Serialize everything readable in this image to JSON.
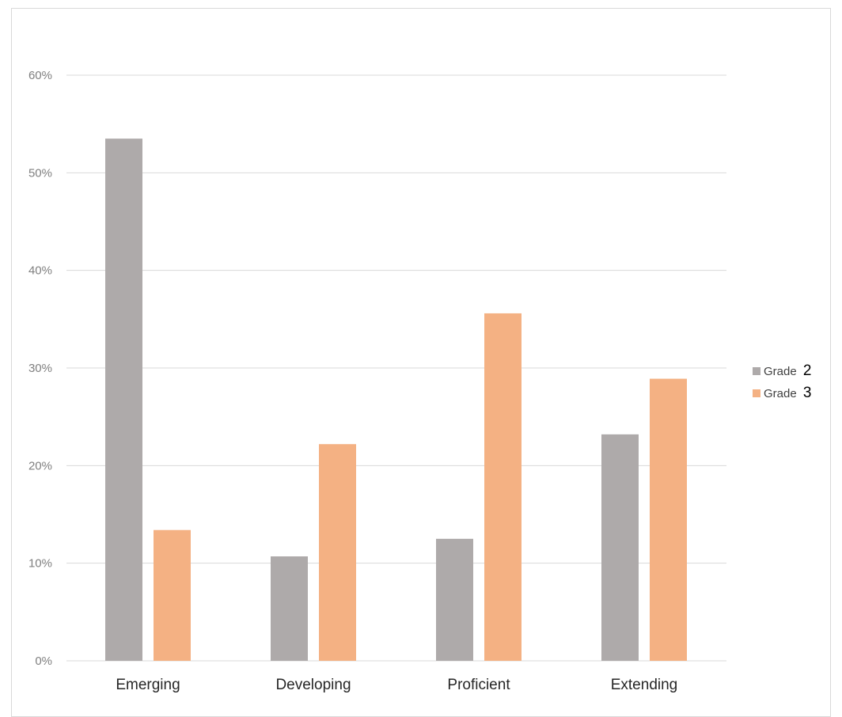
{
  "chart_data": {
    "type": "bar",
    "categories": [
      "Emerging",
      "Developing",
      "Proficient",
      "Extending"
    ],
    "series": [
      {
        "name": "Grade 2",
        "legend_word": "Grade",
        "legend_number": "2",
        "color": "#aeaaaa",
        "values": [
          53.5,
          10.7,
          12.5,
          23.2
        ]
      },
      {
        "name": "Grade 3",
        "legend_word": "Grade",
        "legend_number": "3",
        "color": "#f4b183",
        "values": [
          13.4,
          22.2,
          35.6,
          28.9
        ]
      }
    ],
    "ylim": [
      0,
      60
    ],
    "yticks": [
      0,
      10,
      20,
      30,
      40,
      50,
      60
    ],
    "ytick_labels": [
      "0%",
      "10%",
      "20%",
      "30%",
      "40%",
      "50%",
      "60%"
    ],
    "grid": true,
    "gridline_color": "#d9d9d9",
    "legend_position": "right",
    "title": "",
    "xlabel": "",
    "ylabel": ""
  }
}
